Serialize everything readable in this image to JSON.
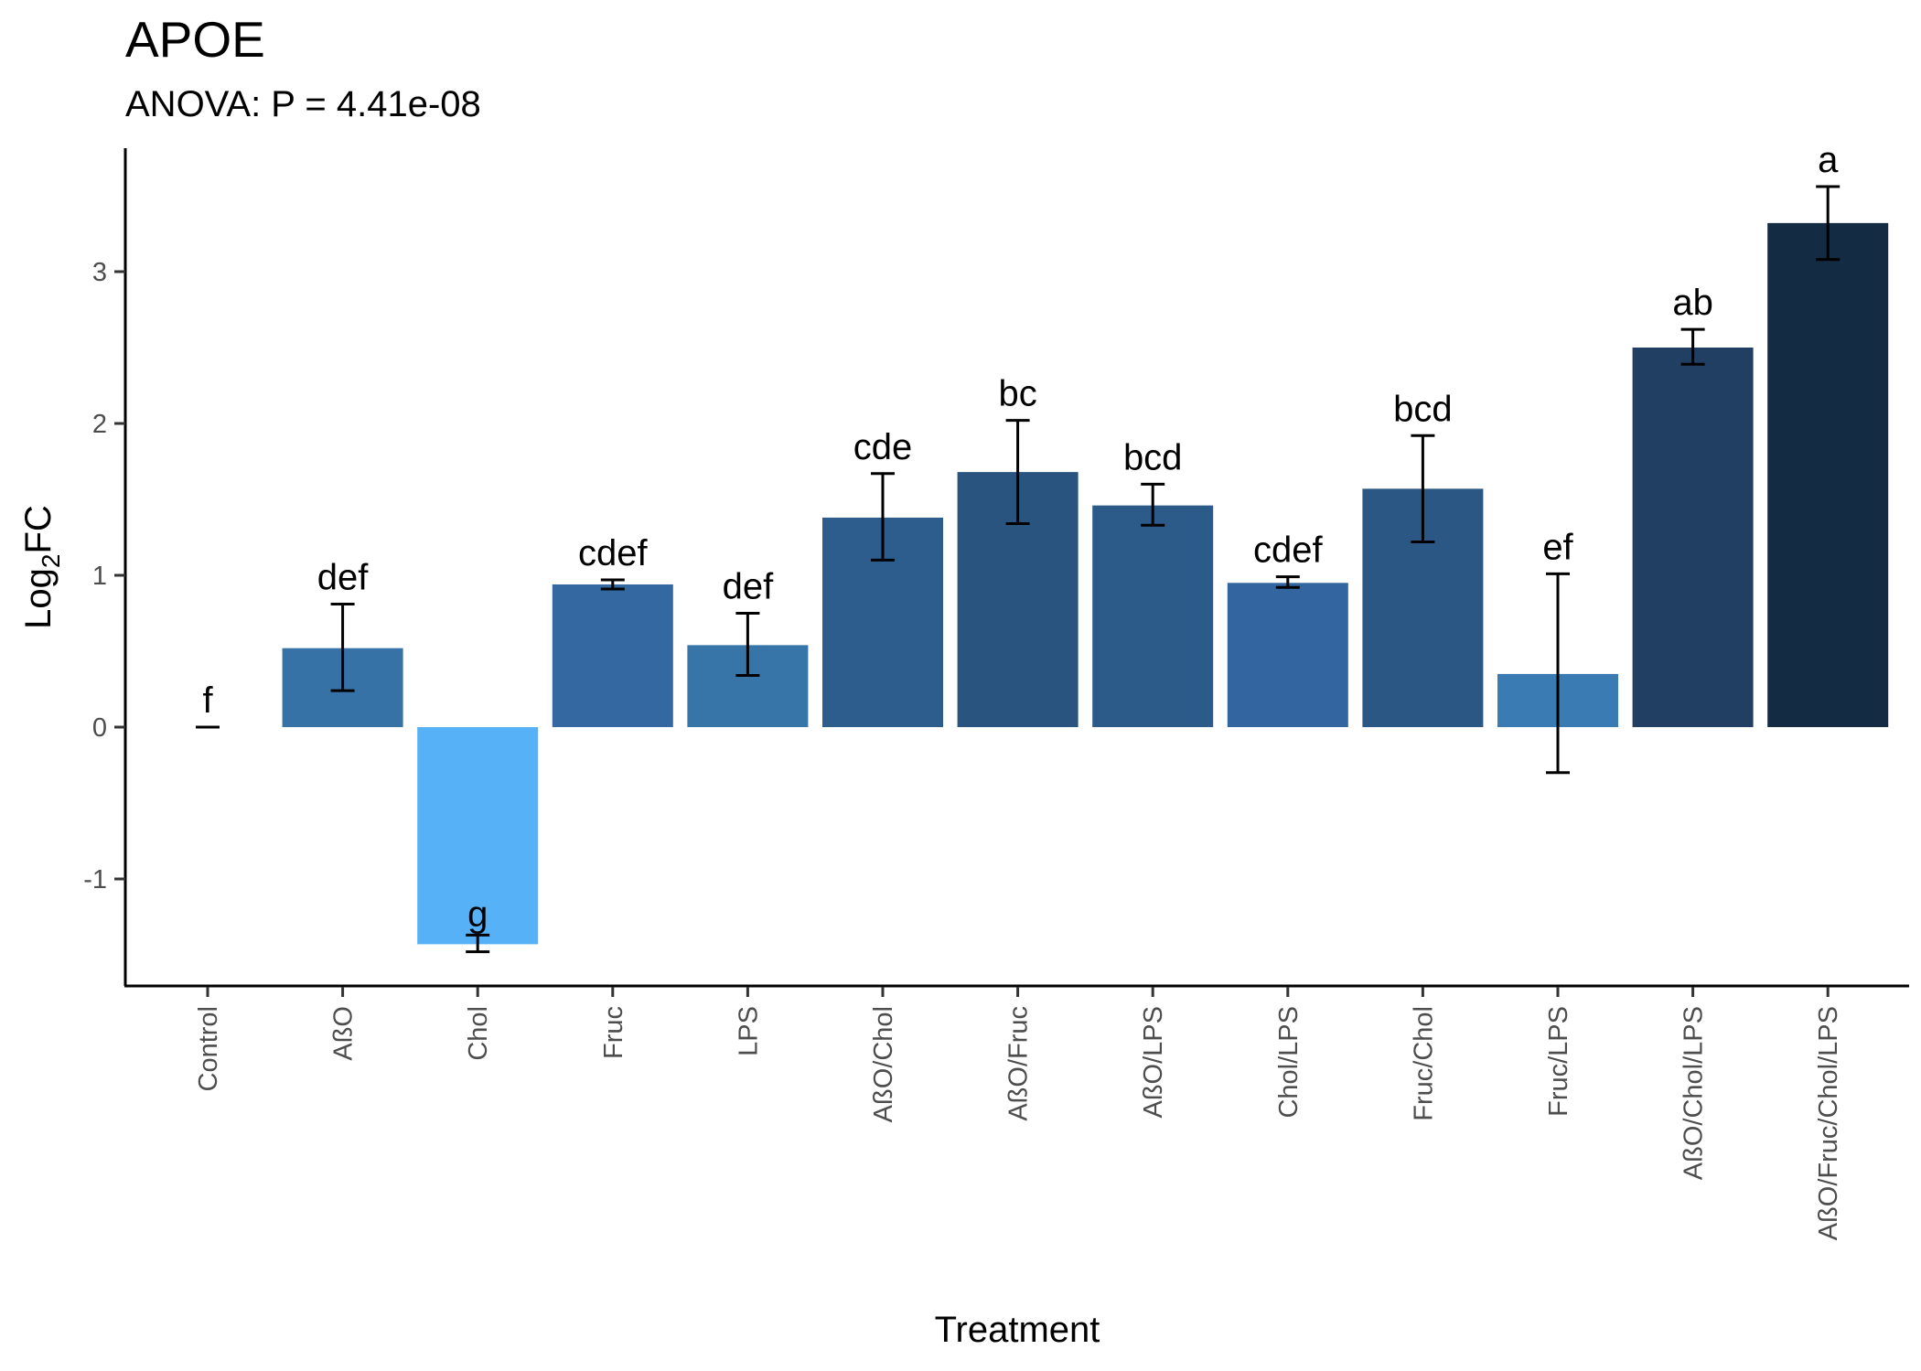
{
  "chart_data": {
    "type": "bar",
    "title": "APOE",
    "subtitle": "ANOVA: P = 4.41e-08",
    "xlabel": "Treatment",
    "ylabel": {
      "main": "Log",
      "sub": "2",
      "rest": "FC"
    },
    "ylim": [
      -1.74,
      3.84
    ],
    "yticks": [
      -1,
      0,
      1,
      2,
      3
    ],
    "grid": false,
    "legend": "none",
    "categories": [
      "Control",
      "AßO",
      "Chol",
      "Fruc",
      "LPS",
      "AßO/Chol",
      "AßO/Fruc",
      "AßO/LPS",
      "Chol/LPS",
      "Fruc/Chol",
      "Fruc/LPS",
      "AßO/Chol/LPS",
      "AßO/Fruc/Chol/LPS"
    ],
    "values": [
      0.0,
      0.52,
      -1.43,
      0.94,
      0.54,
      1.38,
      1.68,
      1.46,
      0.95,
      1.57,
      0.35,
      2.5,
      3.32
    ],
    "error_low": [
      0.0,
      0.24,
      -1.48,
      0.91,
      0.34,
      1.1,
      1.34,
      1.33,
      0.92,
      1.22,
      -0.3,
      2.39,
      3.08
    ],
    "error_high": [
      0.0,
      0.81,
      -1.37,
      0.97,
      0.75,
      1.67,
      2.02,
      1.6,
      0.99,
      1.92,
      1.01,
      2.62,
      3.56
    ],
    "significance_letters": [
      "f",
      "def",
      "g",
      "cdef",
      "def",
      "cde",
      "bc",
      "bcd",
      "cdef",
      "bcd",
      "ef",
      "ab",
      "a"
    ],
    "colors": [
      "#56b1f7",
      "#3672a6",
      "#56b1f7",
      "#3368a0",
      "#3774a8",
      "#2c5d8c",
      "#29547f",
      "#2c5a89",
      "#3366a0",
      "#2b5785",
      "#3b7bb3",
      "#213f62",
      "#132b43"
    ]
  }
}
